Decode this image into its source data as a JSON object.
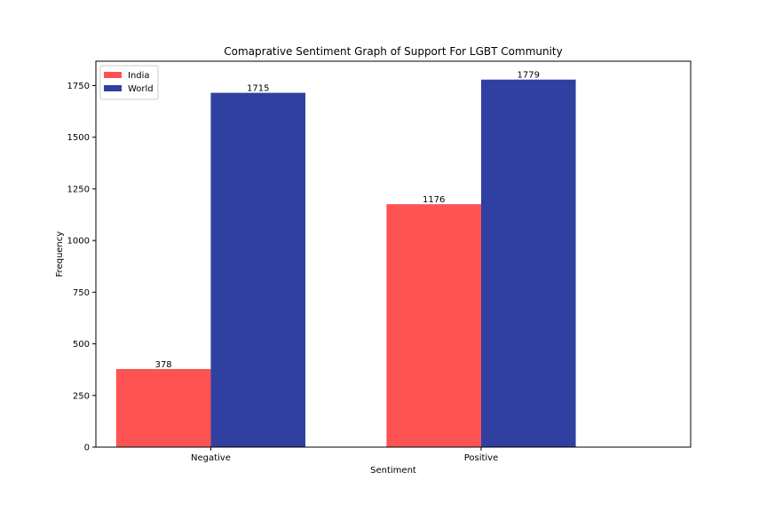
{
  "chart_data": {
    "type": "bar",
    "title": "Comaprative Sentiment Graph of Support For LGBT Community",
    "xlabel": "Sentiment",
    "ylabel": "Frequency",
    "categories": [
      "Negative",
      "Positive"
    ],
    "series": [
      {
        "name": "India",
        "values": [
          378,
          1176
        ],
        "color": "#ff5252"
      },
      {
        "name": "World",
        "values": [
          1715,
          1779
        ],
        "color": "#3040a0"
      }
    ],
    "ylim": [
      0,
      1868
    ],
    "yticks": [
      0,
      250,
      500,
      750,
      1000,
      1250,
      1500,
      1750
    ],
    "grid": false,
    "legend_position": "top-left"
  }
}
